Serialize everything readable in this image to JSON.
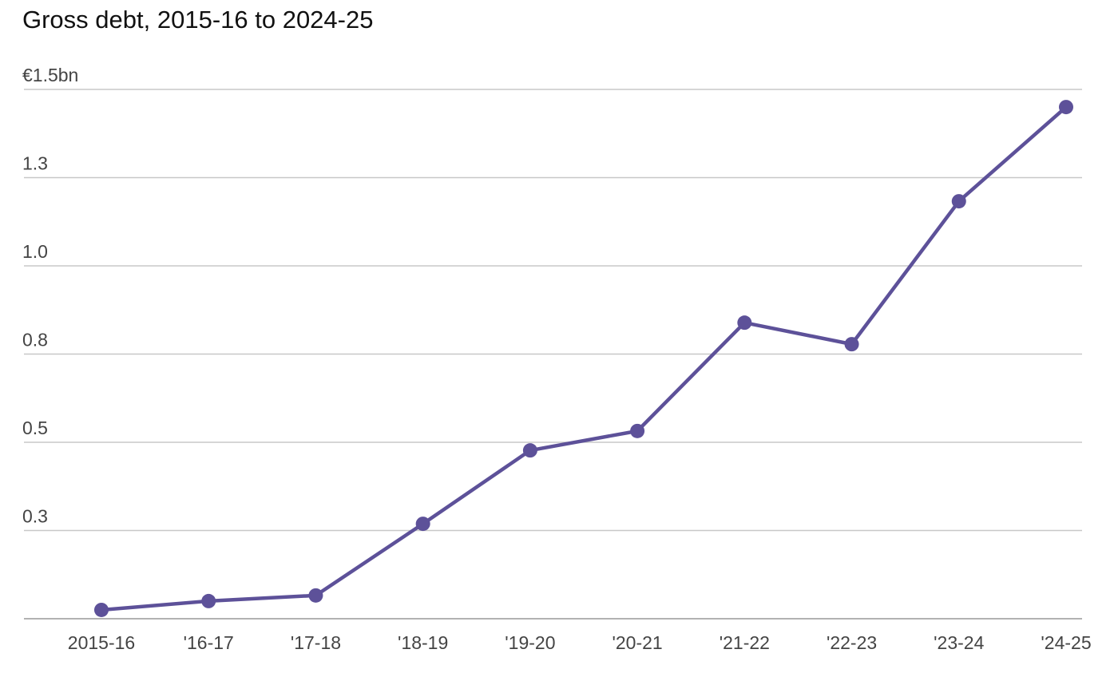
{
  "chart_data": {
    "type": "line",
    "title": "Gross debt, 2015-16 to 2024-25",
    "categories": [
      "2015-16",
      "'16-17",
      "'17-18",
      "'18-19",
      "'19-20",
      "'20-21",
      "'21-22",
      "'22-23",
      "'23-24",
      "'24-25"
    ],
    "series": [
      {
        "name": "Gross debt",
        "color": "#5d5199",
        "values": [
          0.025,
          0.05,
          0.066,
          0.269,
          0.477,
          0.532,
          0.839,
          0.778,
          1.183,
          1.45
        ]
      }
    ],
    "ylim": [
      0,
      1.5
    ],
    "yticks": [
      {
        "value": 0.25,
        "label": "0.3"
      },
      {
        "value": 0.5,
        "label": "0.5"
      },
      {
        "value": 0.75,
        "label": "0.8"
      },
      {
        "value": 1.0,
        "label": "1.0"
      },
      {
        "value": 1.25,
        "label": "1.3"
      },
      {
        "value": 1.5,
        "label": "€1.5bn"
      }
    ],
    "grid": true
  }
}
